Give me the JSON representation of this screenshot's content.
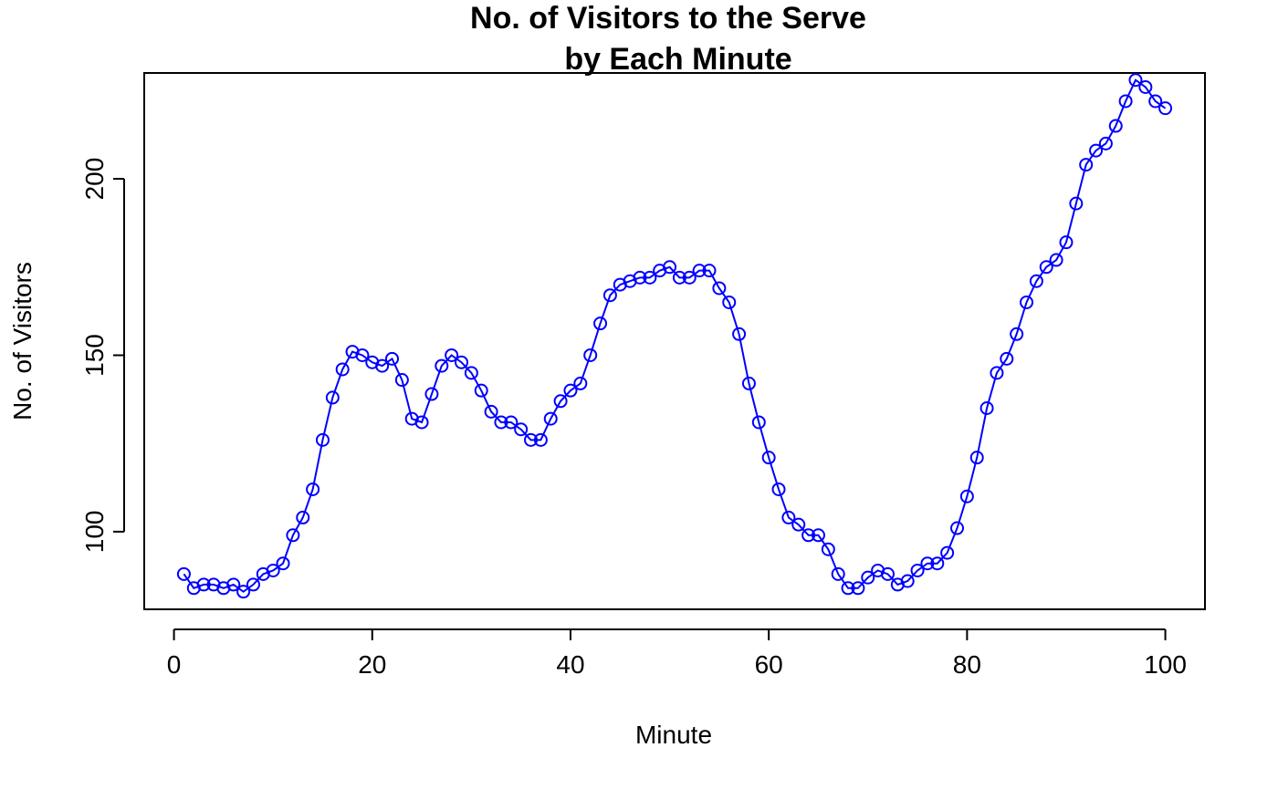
{
  "chart_data": {
    "type": "line",
    "title_lines": [
      "No. of Visitors to the Serve",
      "by Each Minute"
    ],
    "xlabel": "Minute",
    "ylabel": "No. of Visitors",
    "x_ticks": [
      0,
      20,
      40,
      60,
      80,
      100
    ],
    "y_ticks": [
      100,
      150,
      200
    ],
    "xlim": [
      -3,
      104
    ],
    "ylim": [
      78,
      230
    ],
    "marker": "open-circle",
    "grid": false,
    "series": [
      {
        "color": "#0000ff",
        "x": [
          1,
          2,
          3,
          4,
          5,
          6,
          7,
          8,
          9,
          10,
          11,
          12,
          13,
          14,
          15,
          16,
          17,
          18,
          19,
          20,
          21,
          22,
          23,
          24,
          25,
          26,
          27,
          28,
          29,
          30,
          31,
          32,
          33,
          34,
          35,
          36,
          37,
          38,
          39,
          40,
          41,
          42,
          43,
          44,
          45,
          46,
          47,
          48,
          49,
          50,
          51,
          52,
          53,
          54,
          55,
          56,
          57,
          58,
          59,
          60,
          61,
          62,
          63,
          64,
          65,
          66,
          67,
          68,
          69,
          70,
          71,
          72,
          73,
          74,
          75,
          76,
          77,
          78,
          79,
          80,
          81,
          82,
          83,
          84,
          85,
          86,
          87,
          88,
          89,
          90,
          91,
          92,
          93,
          94,
          95,
          96,
          97,
          98,
          99,
          100
        ],
        "y": [
          88,
          84,
          85,
          85,
          84,
          85,
          83,
          85,
          88,
          89,
          91,
          99,
          104,
          112,
          126,
          138,
          146,
          151,
          150,
          148,
          147,
          149,
          143,
          132,
          131,
          139,
          147,
          150,
          148,
          145,
          140,
          134,
          131,
          131,
          129,
          126,
          126,
          132,
          137,
          140,
          142,
          150,
          159,
          167,
          170,
          171,
          172,
          172,
          174,
          175,
          172,
          172,
          174,
          174,
          169,
          165,
          156,
          142,
          131,
          121,
          112,
          104,
          102,
          99,
          99,
          95,
          88,
          84,
          84,
          87,
          89,
          88,
          85,
          86,
          89,
          91,
          91,
          94,
          101,
          110,
          121,
          135,
          145,
          149,
          156,
          165,
          171,
          175,
          177,
          182,
          193,
          204,
          208,
          210,
          215,
          222,
          228,
          226,
          222,
          220
        ]
      }
    ]
  }
}
